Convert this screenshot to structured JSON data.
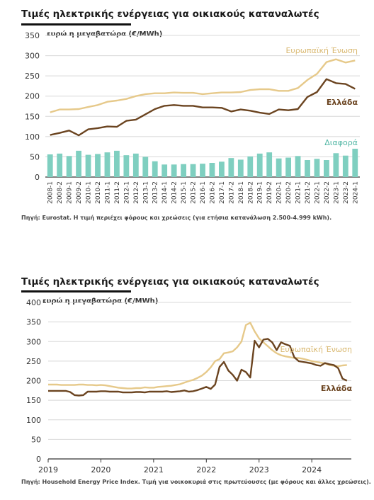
{
  "chart_data": [
    {
      "type": "line",
      "title": "Τιμές ηλεκτρικής ενέργειας για οικιακούς καταναλωτές",
      "ylabel": "ευρώ η μεγαβατώρα (€/MWh)",
      "ylim": [
        0,
        350
      ],
      "yticks": [
        0,
        50,
        100,
        150,
        200,
        250,
        300,
        350
      ],
      "grid": true,
      "categories": [
        "2008-1",
        "2008-2",
        "2009-1",
        "2009-2",
        "2010-1",
        "2010-2",
        "2011-1",
        "2011-2",
        "2012-1",
        "2012-2",
        "2013-1",
        "2013-2",
        "2014-1",
        "2014-2",
        "2015-1",
        "2015-2",
        "2016-1",
        "2016-2",
        "2017-1",
        "2017-2",
        "2018-1",
        "2018-2",
        "2019-1",
        "2019-2",
        "2020-1",
        "2020-2",
        "2021-1",
        "2021-2",
        "2022-1",
        "2022-2",
        "2023-1",
        "2023-2",
        "2024-1"
      ],
      "series": [
        {
          "name": "Ευρωπαϊκή Ένωση",
          "kind": "line",
          "color": "#e6c98a",
          "values": [
            160,
            167,
            167,
            168,
            173,
            178,
            186,
            189,
            193,
            200,
            205,
            207,
            207,
            209,
            208,
            208,
            205,
            207,
            209,
            209,
            210,
            215,
            217,
            217,
            213,
            213,
            220,
            240,
            255,
            284,
            291,
            283,
            288
          ]
        },
        {
          "name": "Ελλάδα",
          "kind": "line",
          "color": "#6b4420",
          "values": [
            104,
            109,
            115,
            103,
            118,
            121,
            125,
            124,
            139,
            142,
            155,
            168,
            176,
            178,
            176,
            176,
            172,
            172,
            171,
            162,
            167,
            164,
            159,
            156,
            167,
            165,
            168,
            198,
            210,
            242,
            232,
            230,
            218
          ]
        },
        {
          "name": "Διαφορά",
          "kind": "bar",
          "color": "#7fcfc0",
          "values": [
            56,
            58,
            52,
            65,
            55,
            57,
            61,
            65,
            54,
            58,
            50,
            39,
            31,
            31,
            32,
            32,
            33,
            35,
            38,
            47,
            43,
            51,
            58,
            61,
            46,
            48,
            52,
            42,
            45,
            42,
            59,
            53,
            70
          ]
        }
      ],
      "source": "Πηγή: Eurostat. Η τιμή περιέχει φόρους και χρεώσεις (για ετήσια κατανάλωση 2.500-4.999 kWh)."
    },
    {
      "type": "line",
      "title": "Τιμές ηλεκτρικής ενέργειας για οικιακούς καταναλωτές",
      "ylabel": "ευρώ η μεγαβατώρα (€/MWh)",
      "ylim": [
        0,
        400
      ],
      "yticks": [
        0,
        50,
        100,
        150,
        200,
        250,
        300,
        350,
        400
      ],
      "xticks": [
        "2019",
        "2020",
        "2021",
        "2022",
        "2023",
        "2024"
      ],
      "xlim": [
        "2019-01",
        "2024-10"
      ],
      "grid": true,
      "x": [
        "2019-01",
        "2019-02",
        "2019-03",
        "2019-04",
        "2019-05",
        "2019-06",
        "2019-07",
        "2019-08",
        "2019-09",
        "2019-10",
        "2019-11",
        "2019-12",
        "2020-01",
        "2020-02",
        "2020-03",
        "2020-04",
        "2020-05",
        "2020-06",
        "2020-07",
        "2020-08",
        "2020-09",
        "2020-10",
        "2020-11",
        "2020-12",
        "2021-01",
        "2021-02",
        "2021-03",
        "2021-04",
        "2021-05",
        "2021-06",
        "2021-07",
        "2021-08",
        "2021-09",
        "2021-10",
        "2021-11",
        "2021-12",
        "2022-01",
        "2022-02",
        "2022-03",
        "2022-04",
        "2022-05",
        "2022-06",
        "2022-07",
        "2022-08",
        "2022-09",
        "2022-10",
        "2022-11",
        "2022-12",
        "2023-01",
        "2023-02",
        "2023-03",
        "2023-04",
        "2023-05",
        "2023-06",
        "2023-07",
        "2023-08",
        "2023-09",
        "2023-10",
        "2023-11",
        "2023-12",
        "2024-01",
        "2024-02",
        "2024-03",
        "2024-04",
        "2024-05",
        "2024-06",
        "2024-07",
        "2024-08",
        "2024-09"
      ],
      "series": [
        {
          "name": "Ευρωπαϊκή Ένωση",
          "color": "#e6c98a",
          "values": [
            190,
            190,
            190,
            189,
            189,
            189,
            189,
            190,
            190,
            189,
            189,
            188,
            189,
            188,
            186,
            184,
            182,
            181,
            180,
            180,
            181,
            181,
            183,
            182,
            182,
            184,
            185,
            186,
            187,
            189,
            191,
            195,
            199,
            202,
            207,
            213,
            222,
            234,
            250,
            255,
            270,
            272,
            275,
            285,
            300,
            342,
            348,
            326,
            308,
            298,
            288,
            278,
            270,
            265,
            262,
            260,
            258,
            258,
            256,
            253,
            250,
            248,
            246,
            244,
            240,
            238,
            237,
            239,
            240
          ]
        },
        {
          "name": "Ελλάδα",
          "color": "#6b4420",
          "values": [
            174,
            174,
            174,
            174,
            174,
            171,
            163,
            162,
            163,
            172,
            172,
            172,
            173,
            173,
            172,
            172,
            172,
            170,
            170,
            170,
            171,
            171,
            170,
            172,
            172,
            172,
            172,
            173,
            171,
            172,
            173,
            175,
            172,
            173,
            176,
            180,
            184,
            179,
            190,
            235,
            248,
            226,
            215,
            200,
            228,
            222,
            208,
            302,
            285,
            305,
            307,
            298,
            278,
            298,
            293,
            289,
            260,
            250,
            248,
            246,
            244,
            240,
            238,
            245,
            242,
            240,
            232,
            205,
            200
          ]
        }
      ],
      "source": "Πηγή: Household Energy Price Index. Τιμή για νοικοκυριά στις πρωτεύουσες (με φόρους και άλλες χρεώσεις)."
    }
  ]
}
